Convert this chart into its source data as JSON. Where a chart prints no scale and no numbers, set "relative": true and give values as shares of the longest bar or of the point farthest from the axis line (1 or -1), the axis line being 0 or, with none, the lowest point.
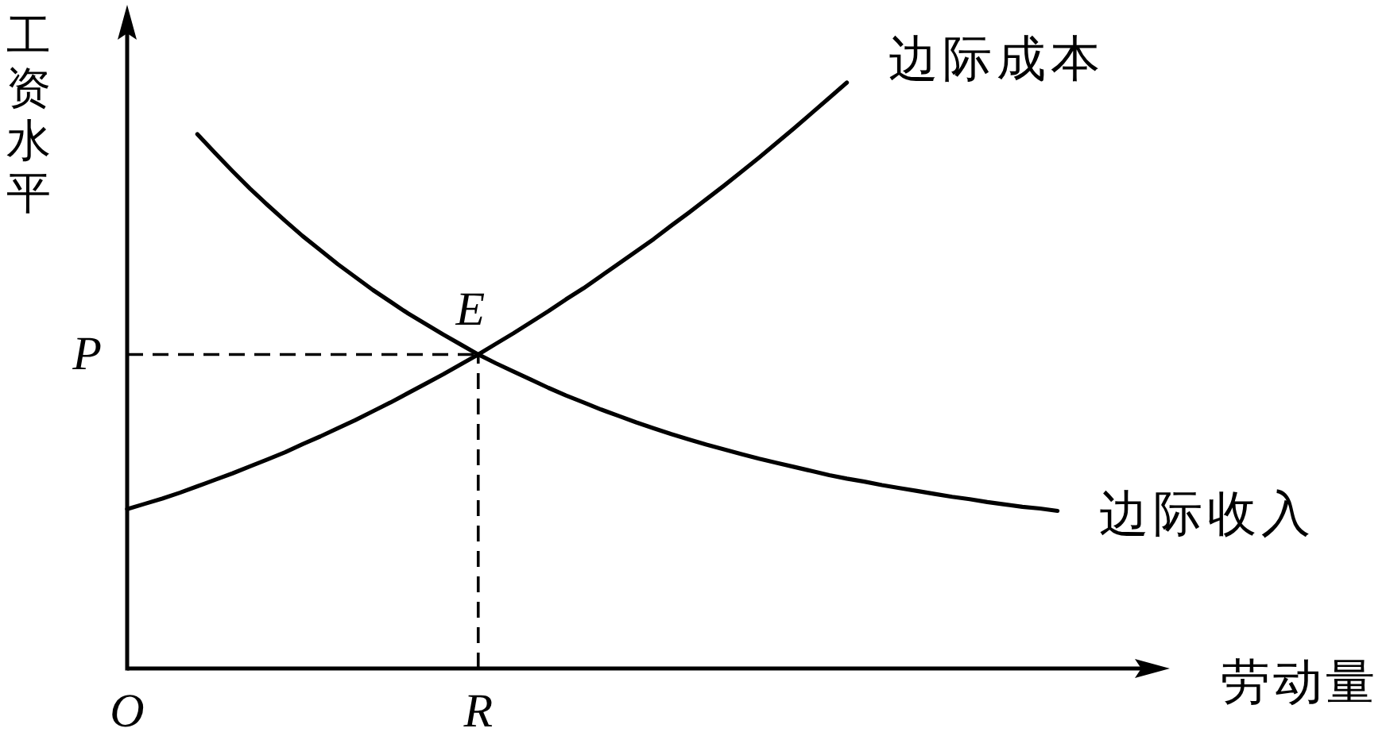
{
  "chart_data": {
    "type": "line",
    "relative": true,
    "xlabel": "劳动量",
    "ylabel": "工资水平",
    "categories": [
      "O",
      null,
      null,
      null,
      null,
      null,
      null,
      null,
      null,
      null,
      null,
      null,
      null,
      null,
      null,
      null,
      null,
      null,
      null,
      null,
      "R",
      null,
      null,
      null,
      null,
      null,
      null,
      null,
      null,
      null,
      null,
      null,
      null,
      null,
      null,
      null,
      null,
      null,
      null,
      null,
      null,
      null,
      null,
      null,
      null,
      null,
      null,
      null,
      null,
      null,
      null,
      null,
      null,
      null,
      null,
      null,
      null,
      null,
      null,
      null
    ],
    "series": [
      {
        "name": "边际成本",
        "color": "#000000",
        "values": [
          0.272,
          0.281,
          0.29,
          0.3,
          0.311,
          0.322,
          0.333,
          0.345,
          0.357,
          0.369,
          0.383,
          0.396,
          0.41,
          0.424,
          0.439,
          0.454,
          0.47,
          0.486,
          0.502,
          0.519,
          0.536,
          0.554,
          0.572,
          0.591,
          0.61,
          0.63,
          0.649,
          0.67,
          0.691,
          0.712,
          0.733,
          0.756,
          0.778,
          0.801,
          0.824,
          0.848,
          0.872,
          0.897,
          0.922,
          0.948,
          0.974,
          1.0,
          null,
          null,
          null,
          null,
          null,
          null,
          null,
          null,
          null,
          null,
          null,
          null,
          null,
          null,
          null,
          null,
          null,
          null
        ]
      },
      {
        "name": "边际收入",
        "color": "#000000",
        "values": [
          null,
          null,
          null,
          null,
          0.912,
          0.88,
          0.849,
          0.819,
          0.791,
          0.764,
          0.738,
          0.714,
          0.69,
          0.668,
          0.646,
          0.626,
          0.606,
          0.588,
          0.57,
          0.553,
          0.536,
          0.521,
          0.507,
          0.493,
          0.479,
          0.466,
          0.454,
          0.442,
          0.431,
          0.42,
          0.41,
          0.4,
          0.391,
          0.382,
          0.374,
          0.366,
          0.358,
          0.351,
          0.344,
          0.337,
          0.33,
          0.324,
          0.319,
          0.313,
          0.308,
          0.303,
          0.298,
          0.293,
          0.289,
          0.284,
          0.28,
          0.276,
          0.273,
          0.269,
          null,
          null,
          null,
          null,
          null,
          null
        ]
      }
    ],
    "ref_lines": [
      {
        "axis": "y",
        "value": 0.536,
        "label": "P",
        "line_style": "dashed",
        "color": "#000000"
      },
      {
        "axis": "x",
        "value": "R",
        "line_style": "dashed",
        "color": "#000000"
      }
    ],
    "annotations": [
      {
        "text": "E",
        "x": "R",
        "y": 0.536
      }
    ]
  }
}
